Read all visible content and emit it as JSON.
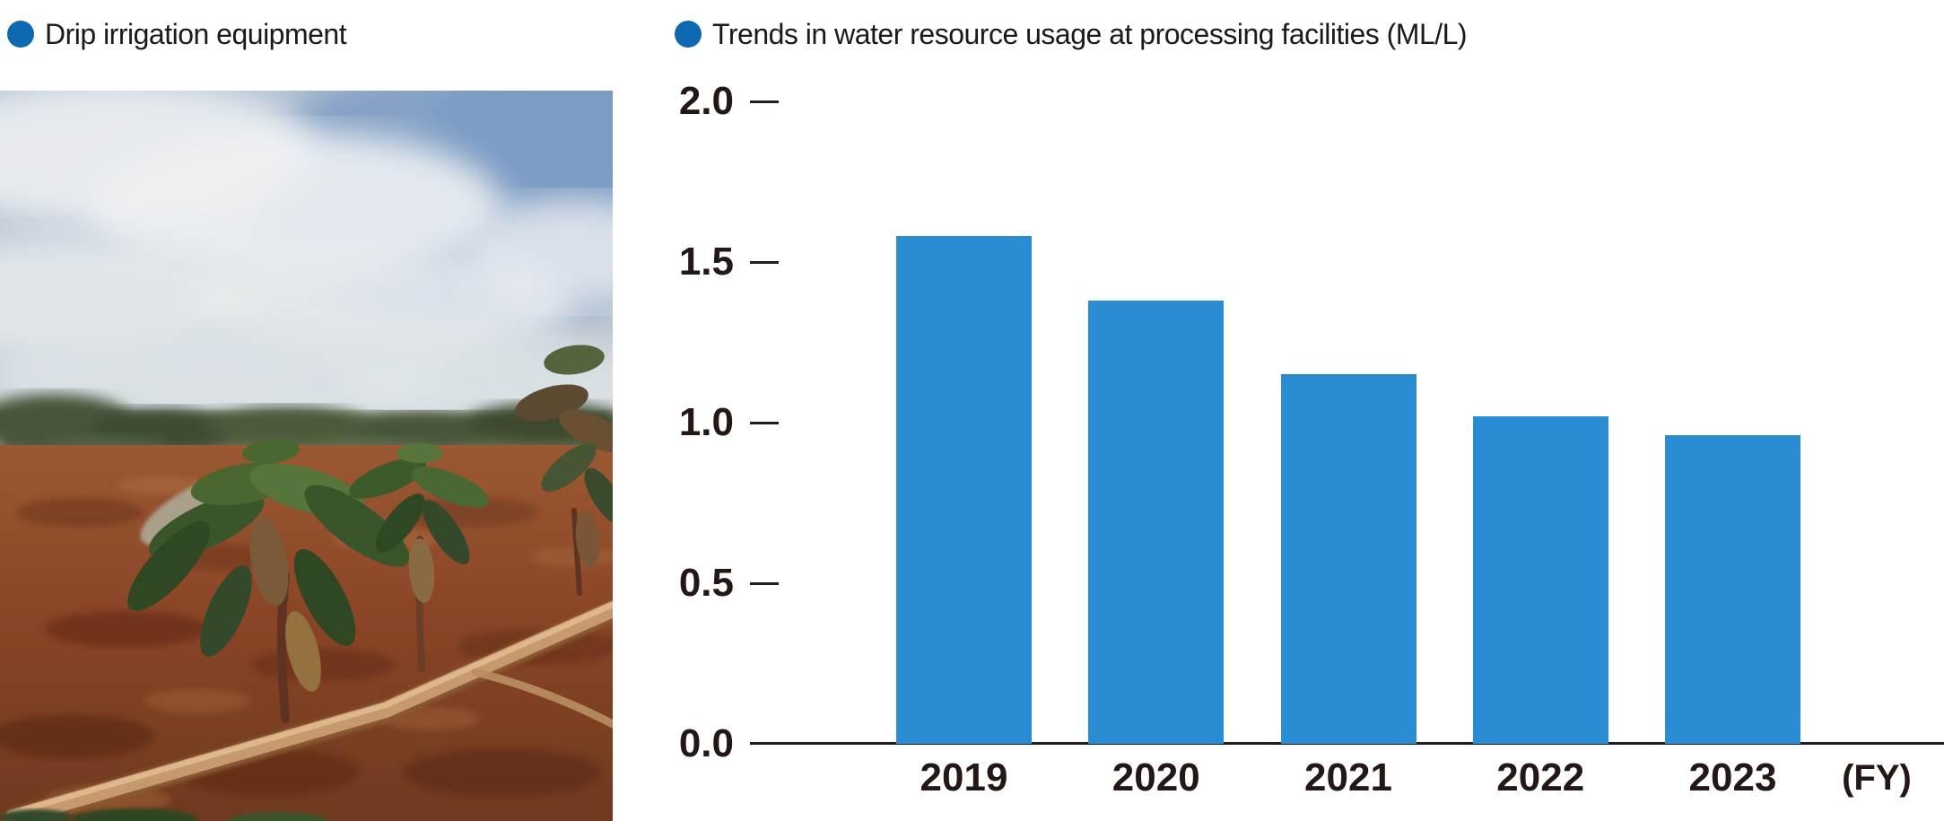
{
  "left_figure": {
    "caption": "Drip irrigation equipment"
  },
  "chart": {
    "caption": "Trends in water resource usage at processing facilities (ML/L)",
    "fy_label": "(FY)"
  },
  "colors": {
    "legend_dot": "#0E68B2",
    "bar": "#2A8CD2",
    "axis_text": "#231815",
    "axis_line": "#221C1A"
  },
  "chart_data": {
    "type": "bar",
    "title": "Trends in water resource usage at processing facilities (ML/L)",
    "categories": [
      "2019",
      "2020",
      "2021",
      "2022",
      "2023"
    ],
    "values": [
      1.58,
      1.38,
      1.15,
      1.02,
      0.96
    ],
    "xlabel": "(FY)",
    "ylabel": "ML/L",
    "ylim": [
      0,
      2.0
    ],
    "yticks": [
      {
        "label": "2.0",
        "value": 2.0
      },
      {
        "label": "1.5",
        "value": 1.5
      },
      {
        "label": "1.0",
        "value": 1.0
      },
      {
        "label": "0.5",
        "value": 0.5
      },
      {
        "label": "0.0",
        "value": 0.0
      }
    ],
    "grid": false,
    "legend_position": "top-left"
  }
}
